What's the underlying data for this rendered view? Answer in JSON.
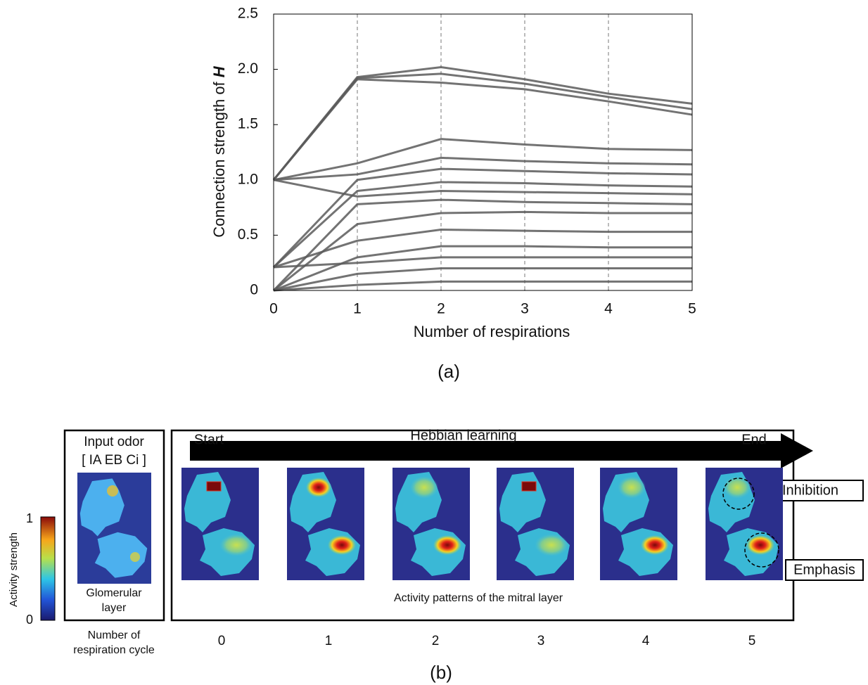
{
  "chart_data": {
    "type": "line",
    "ylabel": "Connection  strength of",
    "ylabel_symbol": "H",
    "xlabel": "Number of respirations",
    "x": [
      0,
      1,
      2,
      3,
      4,
      5
    ],
    "xlim": [
      0,
      5
    ],
    "xticks": [
      0,
      1,
      2,
      3,
      4,
      5
    ],
    "ylim": [
      0,
      2.5
    ],
    "yticks": [
      0,
      0.5,
      {
        "value": 1,
        "label": "1.0"
      },
      1.5,
      {
        "value": 2,
        "label": "2.0"
      },
      2.5
    ],
    "xgrid": true,
    "color": "#5a5a5a",
    "series": [
      {
        "values": [
          1,
          1.93,
          2.02,
          1.91,
          1.78,
          1.69
        ]
      },
      {
        "values": [
          1,
          1.92,
          1.96,
          1.87,
          1.75,
          1.64
        ]
      },
      {
        "values": [
          1,
          1.91,
          1.88,
          1.82,
          1.71,
          1.59
        ]
      },
      {
        "values": [
          1,
          1.15,
          1.37,
          1.32,
          1.28,
          1.27
        ]
      },
      {
        "values": [
          1,
          1.05,
          1.2,
          1.17,
          1.15,
          1.14
        ]
      },
      {
        "values": [
          0.21,
          1.0,
          1.1,
          1.08,
          1.06,
          1.05
        ]
      },
      {
        "values": [
          0.21,
          0.9,
          0.98,
          0.97,
          0.95,
          0.94
        ]
      },
      {
        "values": [
          1,
          0.85,
          0.9,
          0.89,
          0.88,
          0.87
        ]
      },
      {
        "values": [
          0,
          0.78,
          0.82,
          0.8,
          0.79,
          0.78
        ]
      },
      {
        "values": [
          0,
          0.6,
          0.7,
          0.71,
          0.7,
          0.7
        ]
      },
      {
        "values": [
          0.21,
          0.45,
          0.55,
          0.54,
          0.53,
          0.53
        ]
      },
      {
        "values": [
          0,
          0.3,
          0.4,
          0.4,
          0.39,
          0.39
        ]
      },
      {
        "values": [
          0.21,
          0.25,
          0.3,
          0.3,
          0.3,
          0.3
        ]
      },
      {
        "values": [
          0,
          0.15,
          0.2,
          0.2,
          0.2,
          0.2
        ]
      },
      {
        "values": [
          0,
          0.05,
          0.08,
          0.08,
          0.08,
          0.08
        ]
      }
    ]
  },
  "panel_a_label": "(a)",
  "panel_b": {
    "label": "(b)",
    "input": {
      "title": "Input odor",
      "odor": "[ IA EB Ci ]",
      "layer": [
        "Glomerular",
        "layer"
      ]
    },
    "colorbar": {
      "title": "Activity strength",
      "max": 1,
      "min": 0
    },
    "arrow": {
      "start": "Start",
      "title": "Hebbian learning",
      "end": "End"
    },
    "caption": "Activity patterns of the mitral layer",
    "cycle_axis": [
      "Number of",
      "respiration cycle"
    ],
    "cycles": [
      0,
      1,
      2,
      3,
      4,
      5
    ],
    "annotations": {
      "inhibition": "Inhibition",
      "emphasis": "Emphasis"
    }
  }
}
